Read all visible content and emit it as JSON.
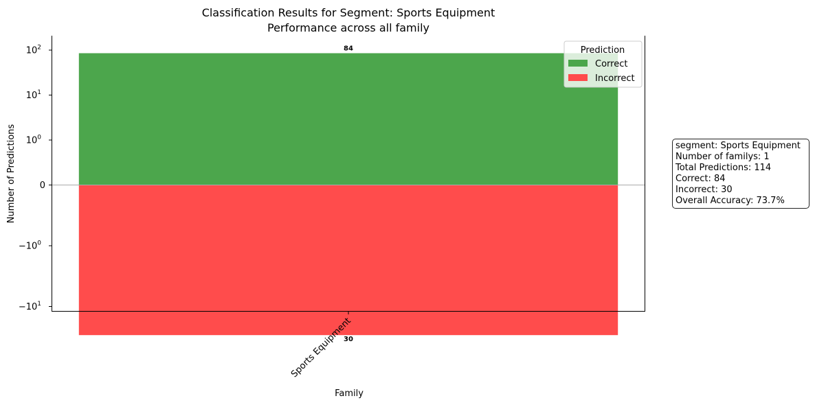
{
  "chart_data": {
    "type": "bar",
    "title": "Classification Results for Segment: Sports Equipment",
    "subtitle": "Performance across all family",
    "xlabel": "Family",
    "ylabel": "Number of Predictions",
    "yscale": "symlog",
    "categories": [
      "Sports Equipment"
    ],
    "series": [
      {
        "name": "Correct",
        "values": [
          84
        ],
        "color": "#4ca64c",
        "direction": "positive"
      },
      {
        "name": "Incorrect",
        "values": [
          -30
        ],
        "color": "#ff4c4c",
        "direction": "negative"
      }
    ],
    "data_labels": [
      "84",
      "30"
    ],
    "yticks": [
      {
        "value": 100,
        "base": "10",
        "exp": "2",
        "sign": ""
      },
      {
        "value": 10,
        "base": "10",
        "exp": "1",
        "sign": ""
      },
      {
        "value": 1,
        "base": "10",
        "exp": "0",
        "sign": ""
      },
      {
        "value": 0,
        "text": "0"
      },
      {
        "value": -1,
        "base": "10",
        "exp": "0",
        "sign": "−"
      },
      {
        "value": -10,
        "base": "10",
        "exp": "1",
        "sign": "−"
      }
    ],
    "legend": {
      "title": "Prediction",
      "position": "top-right"
    },
    "grid": false
  },
  "stats_box": {
    "lines": [
      "segment: Sports Equipment",
      "Number of familys: 1",
      "Total Predictions: 114",
      "Correct: 84",
      "Incorrect: 30",
      "Overall Accuracy: 73.7%"
    ]
  }
}
